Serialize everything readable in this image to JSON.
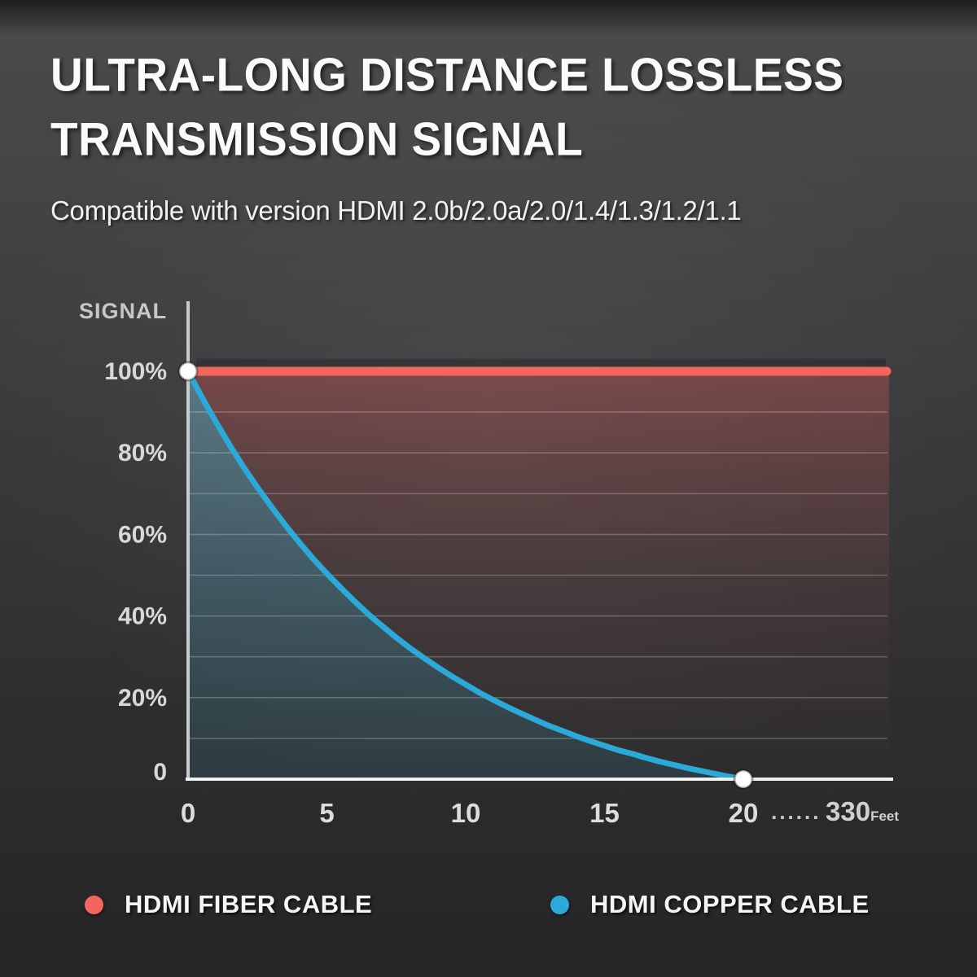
{
  "header": {
    "title_line1": "ULTRA-LONG DISTANCE LOSSLESS",
    "title_line2": "TRANSMISSION SIGNAL",
    "subtitle": "Compatible with version HDMI 2.0b/2.0a/2.0/1.4/1.3/1.2/1.1"
  },
  "chart_data": {
    "type": "line",
    "ylabel": "SIGNAL",
    "x_unit": "Feet",
    "ylim": [
      0,
      100
    ],
    "xlim": [
      0,
      25.2
    ],
    "grid": true,
    "grid_values": [
      10,
      20,
      30,
      40,
      50,
      60,
      70,
      80,
      90
    ],
    "y_ticks": [
      {
        "value": 100,
        "label": "100%"
      },
      {
        "value": 80,
        "label": "80%"
      },
      {
        "value": 60,
        "label": "60%"
      },
      {
        "value": 40,
        "label": "40%"
      },
      {
        "value": 20,
        "label": "20%"
      },
      {
        "value": 0,
        "label": "0"
      }
    ],
    "x_ticks": [
      {
        "value": 0,
        "label": "0"
      },
      {
        "value": 5,
        "label": "5"
      },
      {
        "value": 10,
        "label": "10"
      },
      {
        "value": 15,
        "label": "15"
      },
      {
        "value": 20,
        "label": "20"
      }
    ],
    "x_extra_labels": [
      {
        "value": 21.9,
        "label": "......"
      },
      {
        "value": 23.0,
        "label": "330",
        "unit": "Feet"
      }
    ],
    "series": [
      {
        "name": "HDMI FIBER CABLE",
        "color": "#f2665f",
        "style": "horizontal-line",
        "points": [
          [
            0,
            100
          ],
          [
            25.2,
            100
          ]
        ]
      },
      {
        "name": "HDMI COPPER CABLE",
        "color": "#2ba9d9",
        "style": "decay-curve",
        "points": [
          [
            0,
            100
          ],
          [
            0.5,
            93.6
          ],
          [
            1,
            87.6
          ],
          [
            1.5,
            81.9
          ],
          [
            2,
            76.5
          ],
          [
            2.5,
            71.5
          ],
          [
            3,
            66.8
          ],
          [
            3.5,
            62.3
          ],
          [
            4,
            58.1
          ],
          [
            4.5,
            54.1
          ],
          [
            5,
            50.4
          ],
          [
            5.5,
            46.9
          ],
          [
            6,
            43.6
          ],
          [
            6.5,
            40.4
          ],
          [
            7,
            37.5
          ],
          [
            7.5,
            34.7
          ],
          [
            8,
            32.1
          ],
          [
            8.5,
            29.7
          ],
          [
            9,
            27.4
          ],
          [
            9.5,
            25.2
          ],
          [
            10,
            23.2
          ],
          [
            10.5,
            21.2
          ],
          [
            11,
            19.4
          ],
          [
            11.5,
            17.7
          ],
          [
            12,
            16.1
          ],
          [
            12.5,
            14.6
          ],
          [
            13,
            13.1
          ],
          [
            13.5,
            11.8
          ],
          [
            14,
            10.5
          ],
          [
            14.5,
            9.3
          ],
          [
            15,
            8.2
          ],
          [
            15.5,
            7.1
          ],
          [
            16,
            6.2
          ],
          [
            16.5,
            5.2
          ],
          [
            17,
            4.3
          ],
          [
            17.5,
            3.5
          ],
          [
            18,
            2.7
          ],
          [
            18.5,
            2.0
          ],
          [
            19,
            1.3
          ],
          [
            19.5,
            0.6
          ],
          [
            20,
            0
          ]
        ]
      }
    ],
    "markers": [
      {
        "x": 0,
        "y": 100
      },
      {
        "x": 20,
        "y": 0
      }
    ]
  },
  "legend": {
    "items": [
      {
        "label": "HDMI FIBER CABLE",
        "color": "#f2665f"
      },
      {
        "label": "HDMI COPPER CABLE",
        "color": "#2ba9d9"
      }
    ]
  }
}
